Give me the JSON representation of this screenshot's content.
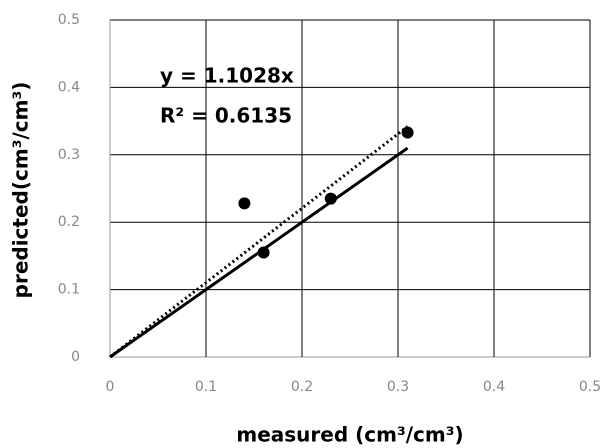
{
  "chart_data": {
    "type": "scatter",
    "xlabel": "measured (cm³/cm³)",
    "ylabel": "predicted(cm³/cm³)",
    "annotations": [
      "y = 1.1028x",
      "R² = 0.6135"
    ],
    "xlim": [
      0,
      0.5
    ],
    "ylim": [
      0,
      0.5
    ],
    "xticks": [
      0,
      0.1,
      0.2,
      0.3,
      0.4,
      0.5
    ],
    "yticks": [
      0,
      0.1,
      0.2,
      0.3,
      0.4,
      0.5
    ],
    "grid": true,
    "series": [
      {
        "type": "scatter",
        "color": "#000000",
        "x": [
          0.14,
          0.16,
          0.23,
          0.31
        ],
        "values": [
          0.228,
          0.155,
          0.235,
          0.333
        ]
      },
      {
        "type": "line",
        "line_style": "solid",
        "color": "#000000",
        "x": [
          0,
          0.31
        ],
        "values": [
          0,
          0.31
        ]
      },
      {
        "type": "line",
        "line_style": "dotted",
        "color": "#000000",
        "x": [
          0,
          0.31
        ],
        "values": [
          0,
          0.342
        ]
      }
    ]
  }
}
